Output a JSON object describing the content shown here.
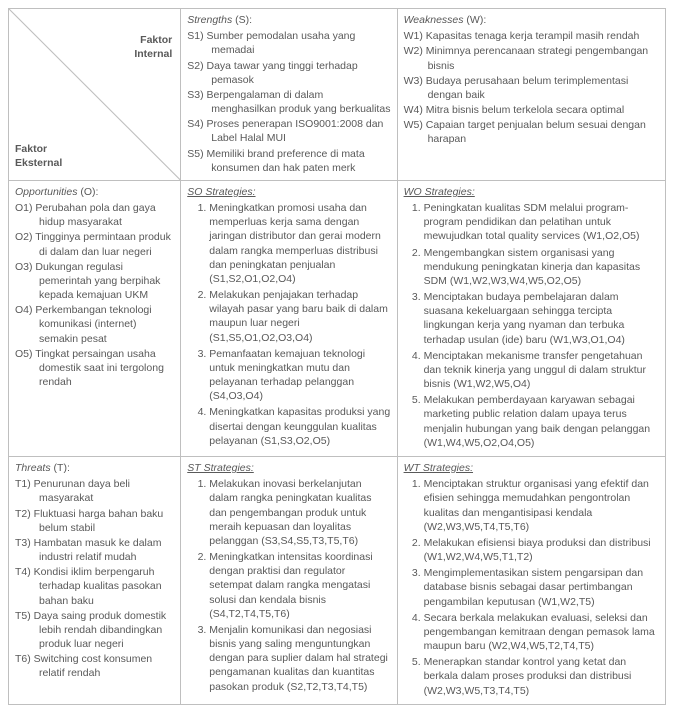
{
  "header": {
    "internal_label": "Faktor\nInternal",
    "external_label": "Faktor\nEksternal"
  },
  "strengths": {
    "title": "Strengths",
    "code": "(S):",
    "items": [
      "Sumber pemodalan usaha yang memadai",
      "Daya tawar yang tinggi terhadap pemasok",
      "Berpengalaman di dalam menghasilkan produk yang berkualitas",
      "Proses penerapan ISO9001:2008 dan Label Halal MUI",
      "Memiliki brand preference di mata konsumen dan hak paten merk"
    ]
  },
  "weaknesses": {
    "title": "Weaknesses",
    "code": "(W):",
    "items": [
      "Kapasitas tenaga kerja terampil masih rendah",
      "Minimnya perencanaan strategi pengembangan bisnis",
      "Budaya perusahaan belum terimplementasi dengan baik",
      "Mitra bisnis belum terkelola secara optimal",
      "Capaian target penjualan belum sesuai dengan harapan"
    ]
  },
  "opportunities": {
    "title": "Opportunities",
    "code": "(O):",
    "items": [
      "Perubahan pola dan gaya hidup masyarakat",
      "Tingginya permintaan produk di dalam dan luar negeri",
      "Dukungan regulasi pemerintah yang berpihak kepada kemajuan UKM",
      "Perkembangan teknologi komunikasi (internet) semakin pesat",
      "Tingkat persaingan usaha domestik saat ini tergolong rendah"
    ]
  },
  "threats": {
    "title": "Threats",
    "code": "(T):",
    "items": [
      "Penurunan daya beli masyarakat",
      "Fluktuasi harga bahan baku belum stabil",
      "Hambatan masuk ke dalam industri relatif mudah",
      "Kondisi iklim berpengaruh terhadap kualitas pasokan bahan baku",
      "Daya saing produk domestik lebih rendah dibandingkan produk luar negeri",
      "Switching cost konsumen relatif rendah"
    ]
  },
  "so": {
    "title": "SO Strategies:",
    "items": [
      "Meningkatkan promosi usaha dan memperluas kerja sama dengan jaringan distributor dan gerai modern dalam rangka memperluas distribusi dan peningkatan penjualan (S1,S2,O1,O2,O4)",
      "Melakukan penjajakan terhadap wilayah pasar yang baru baik di dalam maupun luar negeri (S1,S5,O1,O2,O3,O4)",
      "Pemanfaatan kemajuan teknologi untuk meningkatkan mutu dan pelayanan terhadap pelanggan (S4,O3,O4)",
      "Meningkatkan kapasitas produksi yang disertai dengan keunggulan kualitas pelayanan (S1,S3,O2,O5)"
    ]
  },
  "wo": {
    "title": "WO Strategies:",
    "items": [
      "Peningkatan kualitas SDM melalui program-program pendidikan dan pelatihan untuk mewujudkan total quality services (W1,O2,O5)",
      "Mengembangkan sistem organisasi yang mendukung peningkatan kinerja dan kapasitas SDM (W1,W2,W3,W4,W5,O2,O5)",
      "Menciptakan budaya pembelajaran dalam suasana kekeluargaan sehingga tercipta lingkungan kerja yang nyaman dan terbuka terhadap usulan (ide) baru (W1,W3,O1,O4)",
      "Menciptakan mekanisme transfer pengetahuan dan teknik kinerja yang unggul di dalam struktur bisnis (W1,W2,W5,O4)",
      "Melakukan pemberdayaan karyawan sebagai marketing public relation dalam upaya terus menjalin hubungan yang baik dengan pelanggan (W1,W4,W5,O2,O4,O5)"
    ]
  },
  "st": {
    "title": "ST Strategies:",
    "items": [
      "Melakukan inovasi berkelanjutan dalam rangka peningkatan kualitas dan pengembangan produk untuk meraih kepuasan dan loyalitas pelanggan (S3,S4,S5,T3,T5,T6)",
      "Meningkatkan intensitas koordinasi dengan praktisi dan regulator setempat dalam rangka mengatasi solusi dan kendala bisnis (S4,T2,T4,T5,T6)",
      "Menjalin komunikasi dan negosiasi bisnis yang saling menguntungkan dengan para suplier dalam hal strategi pengamanan kualitas dan kuantitas pasokan produk (S2,T2,T3,T4,T5)"
    ]
  },
  "wt": {
    "title": "WT Strategies:",
    "items": [
      "Menciptakan struktur organisasi yang efektif dan efisien sehingga memudahkan pengontrolan kualitas dan mengantisipasi kendala (W2,W3,W5,T4,T5,T6)",
      "Melakukan efisiensi biaya produksi dan distribusi (W1,W2,W4,W5,T1,T2)",
      "Mengimplementasikan sistem pengarsipan dan database bisnis sebagai dasar pertimbangan pengambilan keputusan (W1,W2,T5)",
      "Secara berkala melakukan evaluasi, seleksi dan pengembangan kemitraan dengan pemasok lama maupun baru (W2,W4,W5,T2,T4,T5)",
      "Menerapkan standar kontrol yang ketat dan berkala dalam proses produksi dan distribusi (W2,W3,W5,T3,T4,T5)"
    ]
  },
  "colors": {
    "border": "#bfbfbf",
    "text": "#595959",
    "bg": "#ffffff"
  }
}
